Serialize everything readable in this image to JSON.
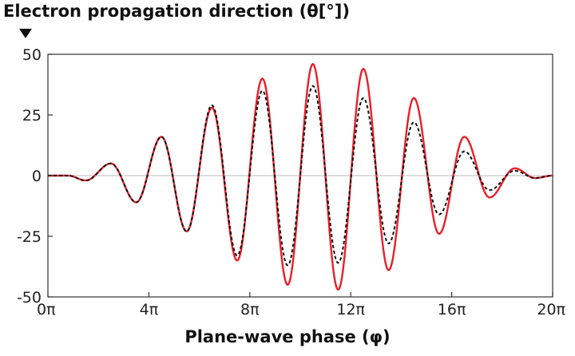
{
  "chart_data": {
    "type": "line",
    "ylabel": "Electron propagation direction (θ[°])",
    "xlabel": "Plane-wave phase (φ)",
    "xlim": [
      0,
      20
    ],
    "ylim": [
      -50,
      50
    ],
    "x_unit": "π",
    "x_ticks": [
      0,
      4,
      8,
      12,
      16,
      20
    ],
    "x_tick_labels": [
      "0π",
      "4π",
      "8π",
      "12π",
      "16π",
      "20π"
    ],
    "y_ticks": [
      -50,
      -25,
      0,
      25,
      50
    ],
    "y_tick_labels": [
      "-50",
      "-25",
      "0",
      "25",
      "50"
    ],
    "grid": false,
    "zero_line": true,
    "series": [
      {
        "style": "solid",
        "color": "#e8202a",
        "extrema": [
          {
            "x": 0.0,
            "y": 0
          },
          {
            "x": 0.8,
            "y": 0
          },
          {
            "x": 1.5,
            "y": -2
          },
          {
            "x": 2.5,
            "y": 5
          },
          {
            "x": 3.5,
            "y": -11
          },
          {
            "x": 4.5,
            "y": 16
          },
          {
            "x": 5.5,
            "y": -23
          },
          {
            "x": 6.5,
            "y": 28
          },
          {
            "x": 7.5,
            "y": -35
          },
          {
            "x": 8.5,
            "y": 40
          },
          {
            "x": 9.5,
            "y": -45
          },
          {
            "x": 10.5,
            "y": 46
          },
          {
            "x": 11.5,
            "y": -47
          },
          {
            "x": 12.5,
            "y": 44
          },
          {
            "x": 13.5,
            "y": -39
          },
          {
            "x": 14.5,
            "y": 32
          },
          {
            "x": 15.5,
            "y": -24
          },
          {
            "x": 16.5,
            "y": 16
          },
          {
            "x": 17.5,
            "y": -9
          },
          {
            "x": 18.5,
            "y": 3
          },
          {
            "x": 19.3,
            "y": -1
          },
          {
            "x": 20.0,
            "y": 0
          }
        ]
      },
      {
        "style": "dashed",
        "color": "#111111",
        "extrema": [
          {
            "x": 0.0,
            "y": 0
          },
          {
            "x": 0.8,
            "y": 0
          },
          {
            "x": 1.5,
            "y": -2
          },
          {
            "x": 2.5,
            "y": 5
          },
          {
            "x": 3.5,
            "y": -11
          },
          {
            "x": 4.5,
            "y": 16
          },
          {
            "x": 5.5,
            "y": -23
          },
          {
            "x": 6.5,
            "y": 29
          },
          {
            "x": 7.5,
            "y": -33
          },
          {
            "x": 8.5,
            "y": 35
          },
          {
            "x": 9.5,
            "y": -37
          },
          {
            "x": 10.5,
            "y": 37
          },
          {
            "x": 11.5,
            "y": -36
          },
          {
            "x": 12.5,
            "y": 32
          },
          {
            "x": 13.5,
            "y": -28
          },
          {
            "x": 14.5,
            "y": 22
          },
          {
            "x": 15.5,
            "y": -16
          },
          {
            "x": 16.5,
            "y": 10
          },
          {
            "x": 17.5,
            "y": -6
          },
          {
            "x": 18.5,
            "y": 2
          },
          {
            "x": 19.3,
            "y": -1
          },
          {
            "x": 20.0,
            "y": 0
          }
        ]
      }
    ]
  }
}
